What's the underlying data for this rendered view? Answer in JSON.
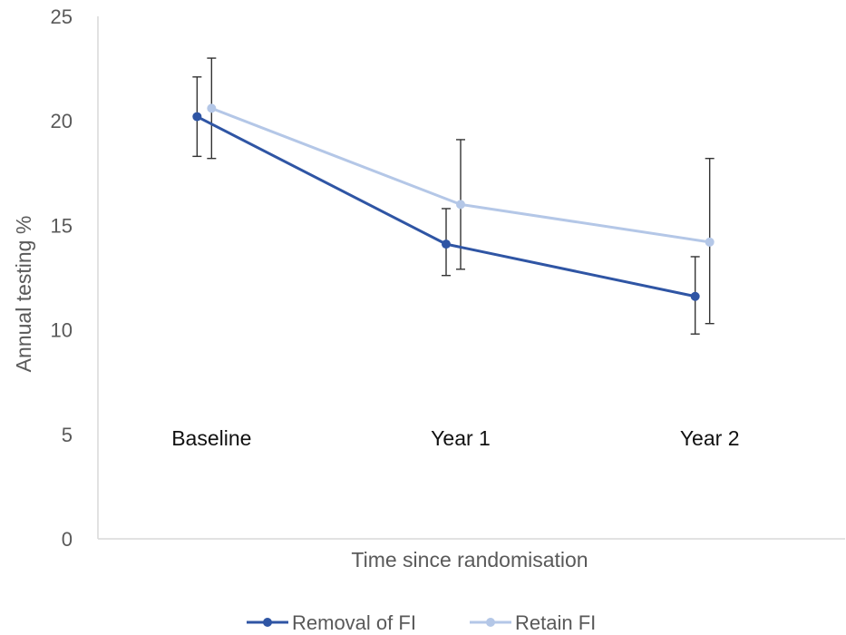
{
  "chart_data": {
    "type": "line",
    "title": "",
    "xlabel": "Time since randomisation",
    "ylabel": "Annual testing %",
    "categories": [
      "Baseline",
      "Year 1",
      "Year 2"
    ],
    "ylim": [
      0,
      25
    ],
    "yticks": [
      0,
      5,
      10,
      15,
      20,
      25
    ],
    "grid": false,
    "legend_position": "bottom",
    "series": [
      {
        "name": "Removal of FI",
        "color": "#2f55a4",
        "values": [
          20.2,
          14.1,
          11.6
        ],
        "error_low": [
          18.3,
          12.6,
          9.8
        ],
        "error_high": [
          22.1,
          15.8,
          13.5
        ]
      },
      {
        "name": "Retain FI",
        "color": "#b4c7e7",
        "values": [
          20.6,
          16.0,
          14.2
        ],
        "error_low": [
          18.2,
          12.9,
          10.3
        ],
        "error_high": [
          23.0,
          19.1,
          18.2
        ]
      }
    ]
  }
}
